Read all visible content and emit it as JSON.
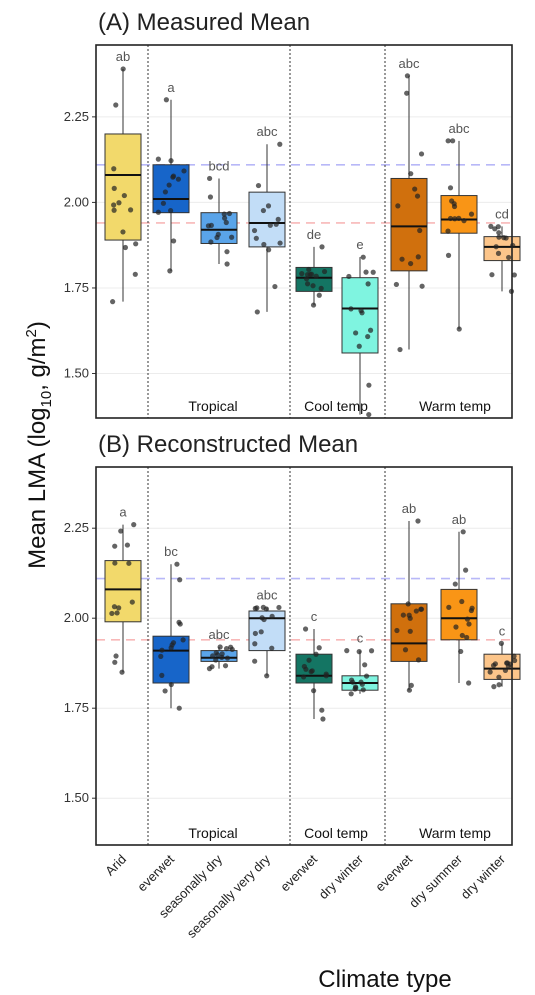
{
  "ylabel_main": "Mean LMA (log",
  "ylabel_sub": "10",
  "ylabel_rest": ", g/m",
  "ylabel_sup": "2",
  "ylabel_end": ")",
  "xlabel": "Climate type",
  "categories": [
    "Arid",
    "everwet",
    "seasonally dry",
    "seasonally very dry",
    "everwet",
    "dry winter",
    "everwet",
    "dry summer",
    "dry winter"
  ],
  "group_labels": [
    "Tropical",
    "Cool temp",
    "Warm temp"
  ],
  "colors": [
    "#f2d96b",
    "#1765c9",
    "#5aa4e9",
    "#c2ddf7",
    "#147563",
    "#7ff4e0",
    "#d0700d",
    "#f99516",
    "#fcc58a"
  ],
  "ref_lines": [
    {
      "y": 2.11,
      "color": "#b8b8f8"
    },
    {
      "y": 1.94,
      "color": "#f8b8b8"
    }
  ],
  "chart_data": [
    {
      "type": "box",
      "title": "(A) Measured Mean",
      "ylim": [
        1.37,
        2.46
      ],
      "yticks": [
        1.5,
        1.75,
        2.0,
        2.25
      ],
      "ytick_labels": [
        "1.50",
        "1.75",
        "2.00",
        "2.25"
      ],
      "boxes": [
        {
          "q1": 1.89,
          "median": 2.08,
          "q3": 2.2,
          "whislo": 1.71,
          "whishi": 2.39,
          "letter": "ab"
        },
        {
          "q1": 1.97,
          "median": 2.01,
          "q3": 2.11,
          "whislo": 1.8,
          "whishi": 2.3,
          "letter": "a"
        },
        {
          "q1": 1.88,
          "median": 1.92,
          "q3": 1.97,
          "whislo": 1.82,
          "whishi": 2.07,
          "letter": "bcd"
        },
        {
          "q1": 1.87,
          "median": 1.94,
          "q3": 2.03,
          "whislo": 1.68,
          "whishi": 2.17,
          "letter": "abc"
        },
        {
          "q1": 1.74,
          "median": 1.78,
          "q3": 1.81,
          "whislo": 1.7,
          "whishi": 1.87,
          "letter": "de"
        },
        {
          "q1": 1.56,
          "median": 1.69,
          "q3": 1.78,
          "whislo": 1.38,
          "whishi": 1.84,
          "letter": "e"
        },
        {
          "q1": 1.8,
          "median": 1.93,
          "q3": 2.07,
          "whislo": 1.57,
          "whishi": 2.37,
          "letter": "abc"
        },
        {
          "q1": 1.91,
          "median": 1.95,
          "q3": 2.02,
          "whislo": 1.63,
          "whishi": 2.18,
          "letter": "abc"
        },
        {
          "q1": 1.83,
          "median": 1.87,
          "q3": 1.9,
          "whislo": 1.74,
          "whishi": 1.93,
          "letter": "cd"
        }
      ]
    },
    {
      "type": "box",
      "title": "(B) Reconstructed Mean",
      "ylim": [
        1.37,
        2.42
      ],
      "yticks": [
        1.5,
        1.75,
        2.0,
        2.25
      ],
      "ytick_labels": [
        "1.50",
        "1.75",
        "2.00",
        "2.25"
      ],
      "boxes": [
        {
          "q1": 1.99,
          "median": 2.08,
          "q3": 2.16,
          "whislo": 1.85,
          "whishi": 2.26,
          "letter": "a"
        },
        {
          "q1": 1.82,
          "median": 1.91,
          "q3": 1.95,
          "whislo": 1.75,
          "whishi": 2.15,
          "letter": "bc"
        },
        {
          "q1": 1.88,
          "median": 1.89,
          "q3": 1.91,
          "whislo": 1.86,
          "whishi": 1.92,
          "letter": "abc"
        },
        {
          "q1": 1.91,
          "median": 2.0,
          "q3": 2.02,
          "whislo": 1.84,
          "whishi": 2.03,
          "letter": "abc"
        },
        {
          "q1": 1.82,
          "median": 1.84,
          "q3": 1.9,
          "whislo": 1.72,
          "whishi": 1.97,
          "letter": "c"
        },
        {
          "q1": 1.8,
          "median": 1.82,
          "q3": 1.84,
          "whislo": 1.79,
          "whishi": 1.91,
          "letter": "c"
        },
        {
          "q1": 1.88,
          "median": 1.93,
          "q3": 2.04,
          "whislo": 1.8,
          "whishi": 2.27,
          "letter": "ab"
        },
        {
          "q1": 1.94,
          "median": 2.0,
          "q3": 2.08,
          "whislo": 1.82,
          "whishi": 2.24,
          "letter": "ab"
        },
        {
          "q1": 1.83,
          "median": 1.86,
          "q3": 1.9,
          "whislo": 1.81,
          "whishi": 1.93,
          "letter": "c"
        }
      ]
    }
  ]
}
